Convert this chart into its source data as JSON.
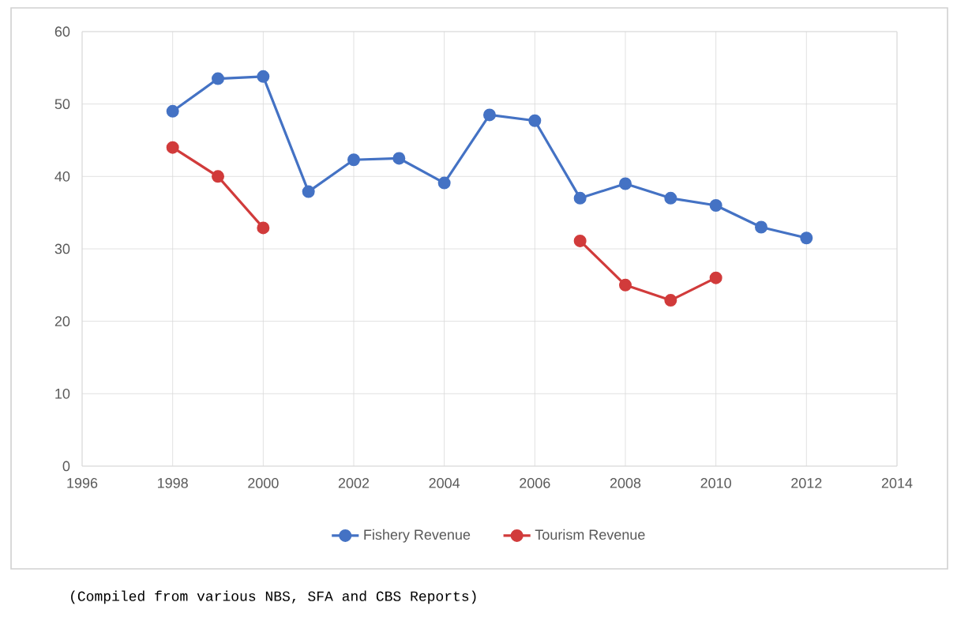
{
  "chart_data": {
    "type": "line",
    "x": [
      1998,
      1999,
      2000,
      2001,
      2002,
      2003,
      2004,
      2005,
      2006,
      2007,
      2008,
      2009,
      2010,
      2011,
      2012
    ],
    "series": [
      {
        "name": "Fishery Revenue",
        "color": "#4472c4",
        "values": [
          49,
          53.5,
          53.8,
          37.9,
          42.3,
          42.5,
          39.1,
          48.5,
          47.7,
          37,
          39,
          37,
          36,
          33,
          31.5
        ]
      },
      {
        "name": "Tourism Revenue",
        "color": "#d13b3b",
        "values": [
          44,
          40,
          32.9,
          null,
          null,
          null,
          null,
          null,
          null,
          31.1,
          25,
          22.9,
          26,
          null,
          null
        ]
      }
    ],
    "xlim": [
      1996,
      2014
    ],
    "xticks": [
      1996,
      1998,
      2000,
      2002,
      2004,
      2006,
      2008,
      2010,
      2012,
      2014
    ],
    "ylim": [
      0,
      60
    ],
    "yticks": [
      0,
      10,
      20,
      30,
      40,
      50,
      60
    ],
    "grid": true,
    "legend": "bottom",
    "marker": "circle",
    "line_style": "solid",
    "annotations": [
      "(Compiled from various NBS, SFA and CBS Reports)"
    ]
  }
}
